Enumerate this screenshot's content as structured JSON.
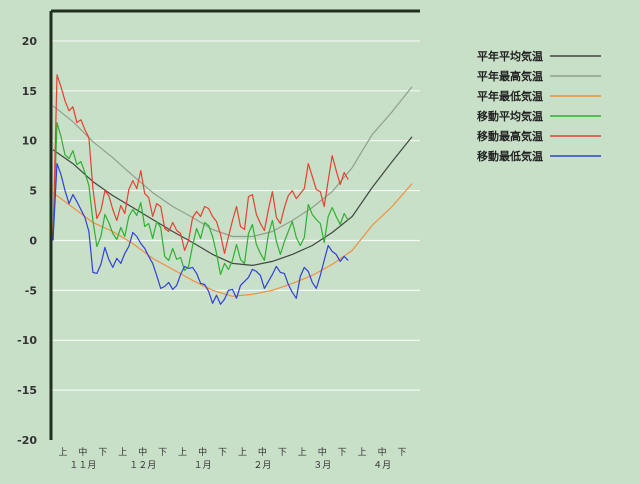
{
  "chart_data": {
    "type": "line",
    "title": "",
    "xlabel": "",
    "ylabel": "",
    "ylim": [
      -20,
      23
    ],
    "yticks": [
      20,
      15,
      10,
      5,
      0,
      -5,
      -10,
      -15,
      -20
    ],
    "grid": true,
    "legend_position": "top-right",
    "x_sub_labels": [
      "上",
      "中",
      "下"
    ],
    "months": [
      "１１月",
      "１２月",
      "１月",
      "２月",
      "３月",
      "４月"
    ],
    "x_range_days": [
      0,
      180
    ],
    "series": [
      {
        "name": "平年平均気温",
        "color": "#404840",
        "x": [
          0,
          10,
          20,
          30,
          40,
          50,
          60,
          70,
          80,
          90,
          100,
          110,
          120,
          130,
          140,
          150,
          160,
          170,
          180
        ],
        "y": [
          9.1,
          7.7,
          5.9,
          4.5,
          3.3,
          2.1,
          0.9,
          -0.2,
          -1.4,
          -2.3,
          -2.5,
          -2.1,
          -1.4,
          -0.5,
          0.8,
          2.4,
          5.3,
          7.9,
          10.4
        ]
      },
      {
        "name": "平年最高気温",
        "color": "#90a090",
        "x": [
          0,
          10,
          20,
          30,
          40,
          50,
          60,
          70,
          80,
          90,
          100,
          110,
          120,
          130,
          140,
          150,
          160,
          170,
          180
        ],
        "y": [
          13.5,
          11.9,
          9.9,
          8.3,
          6.5,
          4.8,
          3.4,
          2.3,
          1.1,
          0.4,
          0.4,
          0.9,
          2.0,
          3.3,
          4.9,
          7.3,
          10.6,
          12.9,
          15.4
        ]
      },
      {
        "name": "平年最低気温",
        "color": "#f09040",
        "x": [
          0,
          10,
          20,
          30,
          40,
          50,
          60,
          70,
          80,
          90,
          100,
          110,
          120,
          130,
          140,
          150,
          160,
          170,
          180
        ],
        "y": [
          4.8,
          3.3,
          1.8,
          0.9,
          -0.3,
          -1.8,
          -2.9,
          -4.0,
          -5.0,
          -5.6,
          -5.4,
          -5.0,
          -4.3,
          -3.5,
          -2.4,
          -1.0,
          1.5,
          3.4,
          5.7
        ]
      },
      {
        "name": "移動平均気温",
        "color": "#30b030",
        "x": [
          0,
          2,
          4,
          6,
          8,
          10,
          12,
          14,
          16,
          18,
          20,
          22,
          24,
          26,
          28,
          30,
          32,
          34,
          36,
          38,
          40,
          42,
          44,
          46,
          48,
          50,
          52,
          54,
          56,
          58,
          60,
          62,
          64,
          66,
          68,
          70,
          72,
          74,
          76,
          78,
          80,
          82,
          84,
          86,
          88,
          90,
          92,
          94,
          96,
          98,
          100,
          102,
          104,
          106,
          108,
          110,
          112,
          114,
          116,
          118,
          120,
          122,
          124,
          126,
          128,
          130,
          132,
          134,
          136,
          138,
          140,
          142,
          144,
          146,
          148
        ],
        "y": [
          0,
          11.8,
          10.4,
          8.6,
          8.2,
          9.0,
          7.6,
          7.9,
          6.8,
          5.5,
          2.0,
          -0.6,
          0.4,
          2.6,
          1.8,
          0.7,
          0.1,
          1.3,
          0.4,
          2.4,
          3.1,
          2.5,
          3.8,
          1.4,
          1.7,
          0.2,
          1.9,
          1.3,
          -1.6,
          -2.0,
          -0.8,
          -1.9,
          -1.7,
          -3.0,
          -2.6,
          -0.5,
          1.2,
          0.2,
          1.8,
          1.5,
          0.4,
          -1.3,
          -3.4,
          -2.3,
          -2.9,
          -2.0,
          -0.4,
          -1.9,
          -2.3,
          0.7,
          1.6,
          -0.4,
          -1.3,
          -2.0,
          0.6,
          2.0,
          -0.1,
          -1.4,
          -0.1,
          0.9,
          1.9,
          0.3,
          -0.5,
          0.3,
          3.6,
          2.6,
          2.1,
          1.7,
          -0.2,
          2.4,
          3.3,
          2.4,
          1.6,
          2.7,
          2.0
        ]
      },
      {
        "name": "移動最高気温",
        "color": "#e84030",
        "x": [
          0,
          2,
          4,
          6,
          8,
          10,
          12,
          14,
          16,
          18,
          20,
          22,
          24,
          26,
          28,
          30,
          32,
          34,
          36,
          38,
          40,
          42,
          44,
          46,
          48,
          50,
          52,
          54,
          56,
          58,
          60,
          62,
          64,
          66,
          68,
          70,
          72,
          74,
          76,
          78,
          80,
          82,
          84,
          86,
          88,
          90,
          92,
          94,
          96,
          98,
          100,
          102,
          104,
          106,
          108,
          110,
          112,
          114,
          116,
          118,
          120,
          122,
          124,
          126,
          128,
          130,
          132,
          134,
          136,
          138,
          140,
          142,
          144,
          146,
          148
        ],
        "y": [
          0,
          16.6,
          15.4,
          14.0,
          13.0,
          13.4,
          11.8,
          12.1,
          11.1,
          10.3,
          5.2,
          2.2,
          3.0,
          5.0,
          4.5,
          3.1,
          2.0,
          3.5,
          2.7,
          5.1,
          6.0,
          5.2,
          7.0,
          4.7,
          4.3,
          2.4,
          3.7,
          3.4,
          1.2,
          0.9,
          1.8,
          1.0,
          0.7,
          -1.0,
          0.0,
          2.3,
          2.9,
          2.4,
          3.4,
          3.2,
          2.4,
          1.9,
          0.6,
          -1.3,
          0.4,
          2.0,
          3.4,
          1.4,
          1.1,
          4.4,
          4.6,
          2.6,
          1.7,
          1.0,
          3.1,
          4.9,
          2.3,
          1.7,
          3.3,
          4.5,
          5.0,
          4.2,
          4.7,
          5.2,
          7.7,
          6.4,
          5.1,
          4.9,
          3.4,
          6.0,
          8.5,
          7.0,
          5.6,
          6.8,
          6.1
        ]
      },
      {
        "name": "移動最低気温",
        "color": "#3040d8",
        "x": [
          0,
          2,
          4,
          6,
          8,
          10,
          12,
          14,
          16,
          18,
          20,
          22,
          24,
          26,
          28,
          30,
          32,
          34,
          36,
          38,
          40,
          42,
          44,
          46,
          48,
          50,
          52,
          54,
          56,
          58,
          60,
          62,
          64,
          66,
          68,
          70,
          72,
          74,
          76,
          78,
          80,
          82,
          84,
          86,
          88,
          90,
          92,
          94,
          96,
          98,
          100,
          102,
          104,
          106,
          108,
          110,
          112,
          114,
          116,
          118,
          120,
          122,
          124,
          126,
          128,
          130,
          132,
          134,
          136,
          138,
          140,
          142,
          144,
          146,
          148
        ],
        "y": [
          0,
          7.7,
          6.6,
          5.0,
          3.7,
          4.6,
          3.9,
          3.1,
          2.3,
          0.9,
          -3.2,
          -3.3,
          -2.4,
          -0.7,
          -1.9,
          -2.7,
          -1.8,
          -2.3,
          -1.3,
          -0.6,
          0.8,
          0.4,
          -0.3,
          -0.8,
          -1.6,
          -2.3,
          -3.5,
          -4.8,
          -4.6,
          -4.2,
          -4.9,
          -4.5,
          -3.4,
          -2.6,
          -2.8,
          -2.7,
          -3.3,
          -4.3,
          -4.4,
          -5.1,
          -6.3,
          -5.5,
          -6.4,
          -5.9,
          -5.0,
          -4.9,
          -5.8,
          -4.5,
          -4.1,
          -3.7,
          -2.9,
          -3.1,
          -3.5,
          -4.8,
          -4.1,
          -3.4,
          -2.6,
          -3.2,
          -3.3,
          -4.4,
          -5.2,
          -5.8,
          -3.6,
          -2.7,
          -3.1,
          -4.2,
          -4.8,
          -3.5,
          -2.0,
          -0.5,
          -1.1,
          -1.4,
          -2.1,
          -1.6,
          -2.0
        ]
      }
    ]
  }
}
